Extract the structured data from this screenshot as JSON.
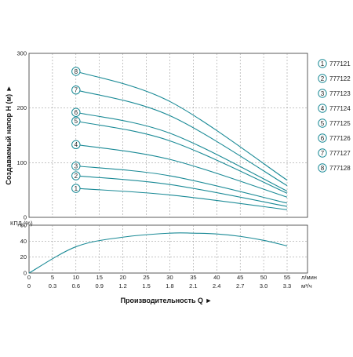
{
  "chart_data": [
    {
      "type": "line",
      "id": "head",
      "ylabel": "Создаваемый напор H (м)",
      "ylim": [
        0,
        300
      ],
      "yticks": [
        0,
        100,
        200,
        300
      ],
      "xlim": [
        0,
        55
      ],
      "x_flow_lmin": [
        0,
        5,
        10,
        15,
        20,
        25,
        30,
        35,
        40,
        45,
        50,
        55
      ],
      "grid": true,
      "series": [
        {
          "marker": "1",
          "name": "777121",
          "x": [
            10,
            30,
            55
          ],
          "y": [
            53,
            41,
            14
          ]
        },
        {
          "marker": "2",
          "name": "777122",
          "x": [
            10,
            30,
            55
          ],
          "y": [
            76,
            60,
            20
          ]
        },
        {
          "marker": "3",
          "name": "777123",
          "x": [
            10,
            30,
            55
          ],
          "y": [
            94,
            76,
            26
          ]
        },
        {
          "marker": "4",
          "name": "777124",
          "x": [
            10,
            30,
            55
          ],
          "y": [
            133,
            106,
            37
          ]
        },
        {
          "marker": "5",
          "name": "777125",
          "x": [
            10,
            30,
            55
          ],
          "y": [
            176,
            140,
            44
          ]
        },
        {
          "marker": "6",
          "name": "777126",
          "x": [
            10,
            30,
            55
          ],
          "y": [
            192,
            154,
            48
          ]
        },
        {
          "marker": "7",
          "name": "777127",
          "x": [
            10,
            30,
            55
          ],
          "y": [
            233,
            186,
            58
          ]
        },
        {
          "marker": "8",
          "name": "777128",
          "x": [
            10,
            30,
            55
          ],
          "y": [
            267,
            212,
            68
          ]
        }
      ]
    },
    {
      "type": "line",
      "id": "efficiency",
      "ylabel": "КПД (%)",
      "ylim": [
        0,
        60
      ],
      "yticks": [
        0,
        20,
        40,
        60
      ],
      "xlim": [
        0,
        55
      ],
      "grid": true,
      "series": [
        {
          "x": [
            0,
            10,
            20,
            30,
            35,
            40,
            45,
            50,
            55
          ],
          "y": [
            0,
            33,
            45,
            50,
            50,
            49,
            46,
            41,
            34
          ]
        }
      ]
    }
  ],
  "axis": {
    "unit_lmin": "л/мин",
    "unit_m3h": "м³/ч",
    "x_m3h_labels": [
      "0",
      "0.3",
      "0.6",
      "0.9",
      "1.2",
      "1.5",
      "1.8",
      "2.1",
      "2.4",
      "2.7",
      "3.0",
      "3.3"
    ],
    "xlabel": "Производительность Q ►",
    "head_ylabel": "Создаваемый напор H (м) ►",
    "eff_ylabel": "КПД (%)"
  },
  "legend": [
    {
      "num": "1",
      "label": "777121"
    },
    {
      "num": "2",
      "label": "777122"
    },
    {
      "num": "3",
      "label": "777123"
    },
    {
      "num": "4",
      "label": "777124"
    },
    {
      "num": "5",
      "label": "777125"
    },
    {
      "num": "6",
      "label": "777126"
    },
    {
      "num": "7",
      "label": "777127"
    },
    {
      "num": "8",
      "label": "777128"
    }
  ],
  "colors": {
    "curve": "#1a8a96",
    "grid": "#8a8a8a",
    "frame": "#333333",
    "marker_fill": "#ffffff"
  }
}
